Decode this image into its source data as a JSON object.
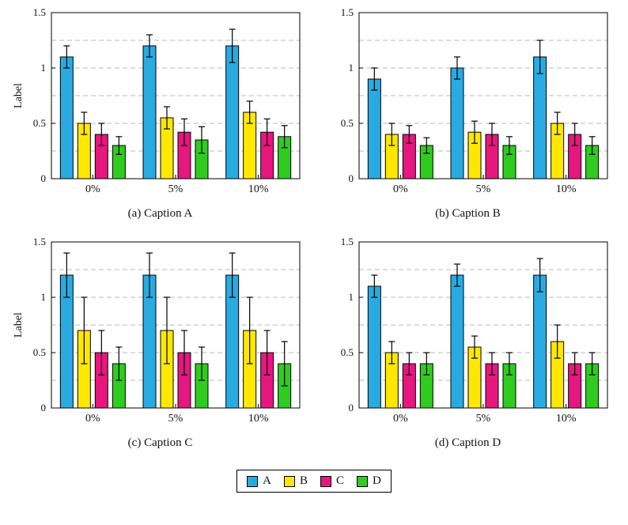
{
  "legend": {
    "entries": [
      {
        "label": "A",
        "color": "#29abe2"
      },
      {
        "label": "B",
        "color": "#ffe800"
      },
      {
        "label": "C",
        "color": "#e6177e"
      },
      {
        "label": "D",
        "color": "#2fcc1f"
      }
    ]
  },
  "chart_data": [
    {
      "type": "bar",
      "title": "(a) Caption A",
      "xlabel": "",
      "ylabel": "Label",
      "categories": [
        "0%",
        "5%",
        "10%"
      ],
      "series": [
        {
          "name": "A",
          "color": "#29abe2",
          "values": [
            1.1,
            1.2,
            1.2
          ],
          "errors": [
            0.1,
            0.1,
            0.15
          ]
        },
        {
          "name": "B",
          "color": "#ffe800",
          "values": [
            0.5,
            0.55,
            0.6
          ],
          "errors": [
            0.1,
            0.1,
            0.1
          ]
        },
        {
          "name": "C",
          "color": "#e6177e",
          "values": [
            0.4,
            0.42,
            0.42
          ],
          "errors": [
            0.1,
            0.12,
            0.12
          ]
        },
        {
          "name": "D",
          "color": "#2fcc1f",
          "values": [
            0.3,
            0.35,
            0.38
          ],
          "errors": [
            0.08,
            0.12,
            0.1
          ]
        }
      ],
      "ylim": [
        0,
        1.5
      ],
      "yticks": {
        "values": [
          0,
          0.5,
          1,
          1.5
        ],
        "labels": [
          "0",
          "0.5",
          "1",
          "1.5"
        ]
      },
      "gridlines": [
        0.25,
        0.5,
        0.75,
        1.0,
        1.25
      ],
      "grid": "dashed",
      "legend_position": "shared-bottom"
    },
    {
      "type": "bar",
      "title": "(b) Caption B",
      "xlabel": "",
      "ylabel": "",
      "categories": [
        "0%",
        "5%",
        "10%"
      ],
      "series": [
        {
          "name": "A",
          "color": "#29abe2",
          "values": [
            0.9,
            1.0,
            1.1
          ],
          "errors": [
            0.1,
            0.1,
            0.15
          ]
        },
        {
          "name": "B",
          "color": "#ffe800",
          "values": [
            0.4,
            0.42,
            0.5
          ],
          "errors": [
            0.1,
            0.1,
            0.1
          ]
        },
        {
          "name": "C",
          "color": "#e6177e",
          "values": [
            0.4,
            0.4,
            0.4
          ],
          "errors": [
            0.08,
            0.1,
            0.1
          ]
        },
        {
          "name": "D",
          "color": "#2fcc1f",
          "values": [
            0.3,
            0.3,
            0.3
          ],
          "errors": [
            0.07,
            0.08,
            0.08
          ]
        }
      ],
      "ylim": [
        0,
        1.5
      ],
      "yticks": {
        "values": [
          0,
          0.5,
          1,
          1.5
        ],
        "labels": [
          "0",
          "0.5",
          "1",
          "1.5"
        ]
      },
      "gridlines": [
        0.25,
        0.5,
        0.75,
        1.0,
        1.25
      ],
      "grid": "dashed",
      "legend_position": "shared-bottom"
    },
    {
      "type": "bar",
      "title": "(c) Caption C",
      "xlabel": "",
      "ylabel": "Label",
      "categories": [
        "0%",
        "5%",
        "10%"
      ],
      "series": [
        {
          "name": "A",
          "color": "#29abe2",
          "values": [
            1.2,
            1.2,
            1.2
          ],
          "errors": [
            0.2,
            0.2,
            0.2
          ]
        },
        {
          "name": "B",
          "color": "#ffe800",
          "values": [
            0.7,
            0.7,
            0.7
          ],
          "errors": [
            0.3,
            0.3,
            0.3
          ]
        },
        {
          "name": "C",
          "color": "#e6177e",
          "values": [
            0.5,
            0.5,
            0.5
          ],
          "errors": [
            0.2,
            0.2,
            0.2
          ]
        },
        {
          "name": "D",
          "color": "#2fcc1f",
          "values": [
            0.4,
            0.4,
            0.4
          ],
          "errors": [
            0.15,
            0.15,
            0.2
          ]
        }
      ],
      "ylim": [
        0,
        1.5
      ],
      "yticks": {
        "values": [
          0,
          0.5,
          1,
          1.5
        ],
        "labels": [
          "0",
          "0.5",
          "1",
          "1.5"
        ]
      },
      "gridlines": [
        0.25,
        0.5,
        0.75,
        1.0,
        1.25
      ],
      "grid": "dashed",
      "legend_position": "shared-bottom"
    },
    {
      "type": "bar",
      "title": "(d) Caption D",
      "xlabel": "",
      "ylabel": "",
      "categories": [
        "0%",
        "5%",
        "10%"
      ],
      "series": [
        {
          "name": "A",
          "color": "#29abe2",
          "values": [
            1.1,
            1.2,
            1.2
          ],
          "errors": [
            0.1,
            0.1,
            0.15
          ]
        },
        {
          "name": "B",
          "color": "#ffe800",
          "values": [
            0.5,
            0.55,
            0.6
          ],
          "errors": [
            0.1,
            0.1,
            0.15
          ]
        },
        {
          "name": "C",
          "color": "#e6177e",
          "values": [
            0.4,
            0.4,
            0.4
          ],
          "errors": [
            0.1,
            0.1,
            0.1
          ]
        },
        {
          "name": "D",
          "color": "#2fcc1f",
          "values": [
            0.4,
            0.4,
            0.4
          ],
          "errors": [
            0.1,
            0.1,
            0.1
          ]
        }
      ],
      "ylim": [
        0,
        1.5
      ],
      "yticks": {
        "values": [
          0,
          0.5,
          1,
          1.5
        ],
        "labels": [
          "0",
          "0.5",
          "1",
          "1.5"
        ]
      },
      "gridlines": [
        0.25,
        0.5,
        0.75,
        1.0,
        1.25
      ],
      "grid": "dashed",
      "legend_position": "shared-bottom"
    }
  ]
}
